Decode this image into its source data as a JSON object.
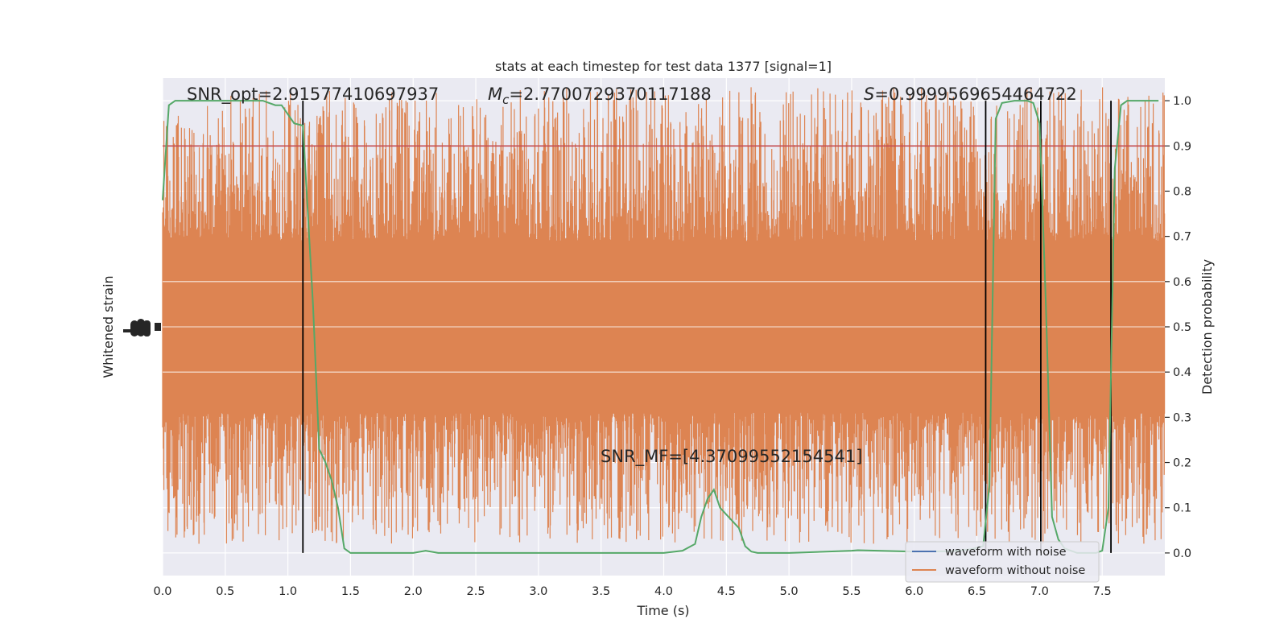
{
  "chart_data": {
    "type": "line",
    "title": "stats at each timestep for test data 1377 [signal=1]",
    "xlabel": "Time (s)",
    "ylabel_left": "Whitened strain",
    "ylabel_right": "Detection probability",
    "xlim": [
      0,
      8.0
    ],
    "y2lim": [
      -0.05,
      1.05
    ],
    "x_ticks": [
      "0.0",
      "0.5",
      "1.0",
      "1.5",
      "2.0",
      "2.5",
      "3.0",
      "3.5",
      "4.0",
      "4.5",
      "5.0",
      "5.5",
      "6.0",
      "6.5",
      "7.0",
      "7.5"
    ],
    "y2_ticks": [
      "0.0",
      "0.1",
      "0.2",
      "0.3",
      "0.4",
      "0.5",
      "0.6",
      "0.7",
      "0.8",
      "0.9",
      "1.0"
    ],
    "threshold": 0.9,
    "threshold_color": "#c44e52",
    "vlines": [
      1.12,
      6.57,
      7.01,
      7.57
    ],
    "vline_color": "#000000",
    "annotations": {
      "snr_opt": "SNR_opt=2.91577410697937",
      "mc_symbol": "M",
      "mc_sub": "c",
      "mc_value": "=2.7700729370117188",
      "s_symbol": "S",
      "s_value": "=0.9999569654464722",
      "snr_mf": "SNR_MF=[4.37099552154541]"
    },
    "series": [
      {
        "name": "waveform with noise",
        "color": "#4c72b0"
      },
      {
        "name": "waveform without noise",
        "color": "#dd8452"
      },
      {
        "color": "#55a868",
        "axis": "right",
        "x": [
          0.0,
          0.05,
          0.1,
          0.2,
          0.3,
          0.4,
          0.5,
          0.6,
          0.7,
          0.8,
          0.85,
          0.9,
          0.95,
          1.0,
          1.05,
          1.12,
          1.2,
          1.25,
          1.3,
          1.35,
          1.4,
          1.45,
          1.5,
          1.55,
          1.6,
          1.8,
          2.0,
          2.1,
          2.2,
          2.3,
          2.5,
          3.0,
          3.5,
          4.0,
          4.15,
          4.25,
          4.3,
          4.35,
          4.4,
          4.45,
          4.5,
          4.55,
          4.6,
          4.65,
          4.7,
          4.75,
          4.8,
          5.0,
          5.5,
          5.55,
          6.0,
          6.3,
          6.45,
          6.55,
          6.6,
          6.65,
          6.7,
          6.8,
          6.9,
          6.95,
          7.0,
          7.05,
          7.1,
          7.15,
          7.2,
          7.3,
          7.4,
          7.45,
          7.5,
          7.55,
          7.6,
          7.65,
          7.7,
          7.8,
          7.95
        ],
        "y": [
          0.78,
          0.99,
          1.0,
          1.0,
          1.0,
          1.0,
          1.0,
          1.0,
          1.0,
          1.0,
          0.995,
          0.99,
          0.99,
          0.97,
          0.95,
          0.945,
          0.55,
          0.23,
          0.2,
          0.16,
          0.1,
          0.01,
          0.0,
          0.0,
          0.0,
          0.0,
          0.0,
          0.005,
          0.0,
          0.0,
          0.0,
          0.0,
          0.0,
          0.0,
          0.005,
          0.02,
          0.08,
          0.12,
          0.14,
          0.1,
          0.085,
          0.07,
          0.055,
          0.015,
          0.003,
          0.0,
          0.0,
          0.0,
          0.005,
          0.006,
          0.003,
          0.004,
          0.008,
          0.015,
          0.15,
          0.96,
          0.995,
          1.0,
          1.0,
          0.995,
          0.95,
          0.55,
          0.08,
          0.03,
          0.01,
          0.0,
          0.0,
          0.0,
          0.005,
          0.1,
          0.85,
          0.99,
          1.0,
          1.0,
          1.0
        ]
      }
    ],
    "noise": {
      "center": 0.5,
      "core_halfwidth": 0.19,
      "spike_max": 0.53,
      "spike_min": 0.48,
      "samples": 3200
    }
  }
}
